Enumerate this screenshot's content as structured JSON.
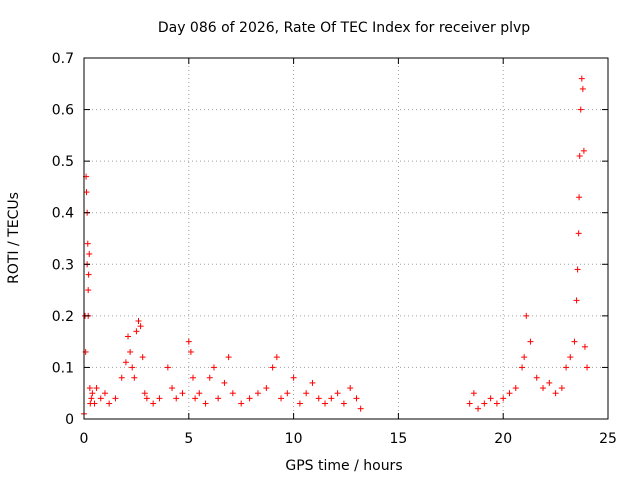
{
  "chart_data": {
    "type": "scatter",
    "title": "Day 086 of 2026, Rate Of TEC Index for receiver plvp",
    "xlabel": "GPS time / hours",
    "ylabel": "ROTI / TECUs",
    "xlim": [
      0,
      25
    ],
    "ylim": [
      0,
      0.7
    ],
    "x_ticks": [
      "0",
      "5",
      "10",
      "15",
      "20",
      "25"
    ],
    "y_ticks": [
      "0",
      "0.1",
      "0.2",
      "0.3",
      "0.4",
      "0.5",
      "0.6",
      "0.7"
    ],
    "grid": true,
    "marker": "+",
    "color": "#ff0000",
    "data_gap_hours": [
      13.2,
      18.4
    ],
    "series": [
      {
        "x": [
          0.0,
          0.05,
          0.08,
          0.1,
          0.12,
          0.15,
          0.15,
          0.18,
          0.2,
          0.2,
          0.22,
          0.25,
          0.28,
          0.3,
          0.35,
          0.4,
          0.5,
          0.6,
          0.8,
          1.0,
          1.2,
          1.5,
          1.8,
          2.0,
          2.1,
          2.2,
          2.3,
          2.4,
          2.5,
          2.6,
          2.7,
          2.8,
          2.9,
          3.0,
          3.3,
          3.6,
          4.0,
          4.2,
          4.4,
          4.7,
          5.0,
          5.1,
          5.2,
          5.3,
          5.5,
          5.8,
          6.0,
          6.2,
          6.4,
          6.7,
          6.9,
          7.1,
          7.5,
          7.9,
          8.3,
          8.7,
          9.0,
          9.2,
          9.4,
          9.7,
          10.0,
          10.3,
          10.6,
          10.9,
          11.2,
          11.5,
          11.8,
          12.1,
          12.4,
          12.7,
          13.0,
          13.2,
          18.4,
          18.6,
          18.8,
          19.1,
          19.4,
          19.7,
          20.0,
          20.3,
          20.6,
          20.9,
          21.0,
          21.1,
          21.3,
          21.6,
          21.9,
          22.2,
          22.5,
          22.8,
          23.0,
          23.2,
          23.4,
          23.5,
          23.55,
          23.6,
          23.62,
          23.65,
          23.7,
          23.75,
          23.8,
          23.85,
          23.9,
          24.0
        ],
        "y": [
          0.01,
          0.2,
          0.13,
          0.47,
          0.44,
          0.4,
          0.3,
          0.34,
          0.25,
          0.2,
          0.28,
          0.32,
          0.06,
          0.03,
          0.04,
          0.05,
          0.03,
          0.06,
          0.04,
          0.05,
          0.03,
          0.04,
          0.08,
          0.11,
          0.16,
          0.13,
          0.1,
          0.08,
          0.17,
          0.19,
          0.18,
          0.12,
          0.05,
          0.04,
          0.03,
          0.04,
          0.1,
          0.06,
          0.04,
          0.05,
          0.15,
          0.13,
          0.08,
          0.04,
          0.05,
          0.03,
          0.08,
          0.1,
          0.04,
          0.07,
          0.12,
          0.05,
          0.03,
          0.04,
          0.05,
          0.06,
          0.1,
          0.12,
          0.04,
          0.05,
          0.08,
          0.03,
          0.05,
          0.07,
          0.04,
          0.03,
          0.04,
          0.05,
          0.03,
          0.06,
          0.04,
          0.02,
          0.03,
          0.05,
          0.02,
          0.03,
          0.04,
          0.03,
          0.04,
          0.05,
          0.06,
          0.1,
          0.12,
          0.2,
          0.15,
          0.08,
          0.06,
          0.07,
          0.05,
          0.06,
          0.1,
          0.12,
          0.15,
          0.23,
          0.29,
          0.36,
          0.43,
          0.51,
          0.6,
          0.66,
          0.64,
          0.52,
          0.14,
          0.1
        ]
      }
    ]
  }
}
